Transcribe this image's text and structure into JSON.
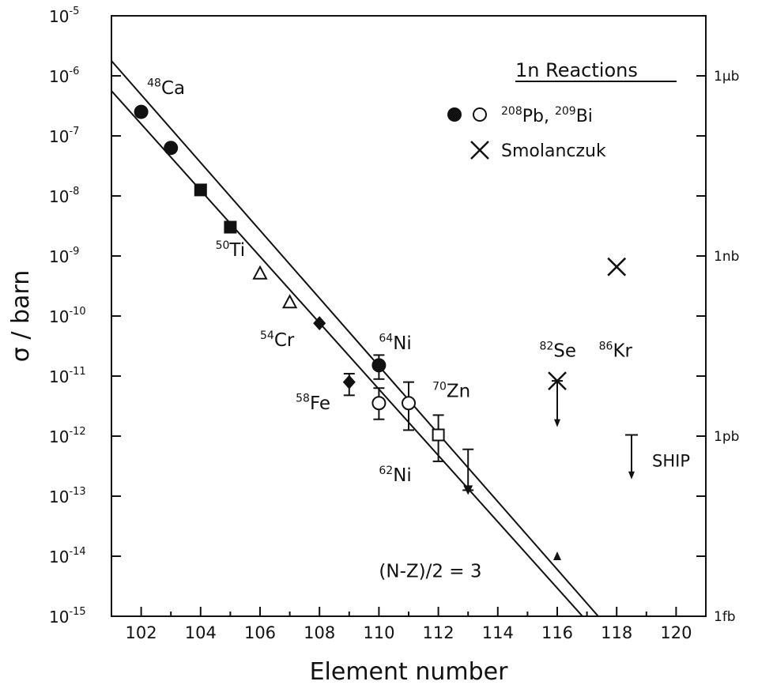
{
  "chart_data": {
    "type": "scatter",
    "xlabel": "Element number",
    "ylabel": "σ / barn",
    "xlim": [
      101,
      121
    ],
    "ylim_log10": [
      -15,
      -5
    ],
    "log_y": true,
    "grid": false,
    "xticks": [
      "102",
      "104",
      "106",
      "108",
      "110",
      "112",
      "114",
      "116",
      "118",
      "120"
    ],
    "yticks": [
      {
        "value": -5,
        "base": "10",
        "exp": "-5"
      },
      {
        "value": -6,
        "base": "10",
        "exp": "-6"
      },
      {
        "value": -7,
        "base": "10",
        "exp": "-7"
      },
      {
        "value": -8,
        "base": "10",
        "exp": "-8"
      },
      {
        "value": -9,
        "base": "10",
        "exp": "-9"
      },
      {
        "value": -10,
        "base": "10",
        "exp": "-10"
      },
      {
        "value": -11,
        "base": "10",
        "exp": "-11"
      },
      {
        "value": -12,
        "base": "10",
        "exp": "-12"
      },
      {
        "value": -13,
        "base": "10",
        "exp": "-13"
      },
      {
        "value": -14,
        "base": "10",
        "exp": "-14"
      },
      {
        "value": -15,
        "base": "10",
        "exp": "-15"
      }
    ],
    "right_axis_labels": [
      {
        "value": -6,
        "text": "1μb"
      },
      {
        "value": -9,
        "text": "1nb"
      },
      {
        "value": -12,
        "text": "1pb"
      },
      {
        "value": -15,
        "text": "1fb"
      }
    ],
    "legend": {
      "title": "1n Reactions",
      "position": "top-right",
      "entries": [
        {
          "markers": [
            "filled-circle",
            "open-circle"
          ],
          "label_parts": [
            {
              "sup": "208",
              "text": "Pb, "
            },
            {
              "sup": "209",
              "text": "Bi"
            }
          ]
        },
        {
          "markers": [
            "x"
          ],
          "label_parts": [
            {
              "sup": "",
              "text": "Smolanczuk"
            }
          ]
        }
      ]
    },
    "lines": [
      {
        "x": [
          101,
          117.38
        ],
        "y_log10": [
          -5.75,
          -15.0
        ]
      },
      {
        "x": [
          101,
          116.85
        ],
        "y_log10": [
          -6.25,
          -15.0
        ]
      }
    ],
    "points": [
      {
        "x": 102,
        "y_log10": -6.6,
        "marker": "filled-circle"
      },
      {
        "x": 103,
        "y_log10": -7.2,
        "marker": "filled-circle"
      },
      {
        "x": 104,
        "y_log10": -7.9,
        "marker": "filled-square"
      },
      {
        "x": 105,
        "y_log10": -8.52,
        "marker": "filled-square"
      },
      {
        "x": 106,
        "y_log10": -9.3,
        "marker": "open-triangle"
      },
      {
        "x": 107,
        "y_log10": -9.78,
        "marker": "open-triangle"
      },
      {
        "x": 108,
        "y_log10": -10.12,
        "marker": "filled-diamond"
      },
      {
        "x": 109,
        "y_log10": -11.1,
        "marker": "filled-diamond",
        "err_low": -11.32,
        "err_high": -10.96
      },
      {
        "x": 110,
        "y_log10": -10.82,
        "marker": "filled-circle",
        "err_low": -11.05,
        "err_high": -10.65
      },
      {
        "x": 110,
        "y_log10": -11.45,
        "marker": "open-circle",
        "err_low": -11.72,
        "err_high": -11.2
      },
      {
        "x": 111,
        "y_log10": -11.45,
        "marker": "open-circle",
        "err_low": -11.9,
        "err_high": -11.1
      },
      {
        "x": 112,
        "y_log10": -11.98,
        "marker": "open-square",
        "err_low": -12.42,
        "err_high": -11.65
      },
      {
        "x": 113,
        "y_log10": -12.9,
        "marker": "filled-down-triangle",
        "err_low": -12.9,
        "err_high": -12.22
      },
      {
        "x": 116,
        "y_log10": -11.08,
        "marker": "x",
        "err_low": -11.5,
        "err_high": -11.08,
        "upper_limit": true,
        "arrow_to": -11.85
      },
      {
        "x": 118,
        "y_log10": -9.18,
        "marker": "x"
      },
      {
        "x": 116,
        "y_log10": -14.0,
        "marker": "filled-small"
      }
    ],
    "ship_limit": {
      "x": 118.5,
      "y_top": -11.98,
      "arrow_to": -12.72,
      "label": "SHIP"
    },
    "annotations": [
      {
        "x": 102.2,
        "y_log10": -6.3,
        "sup": "48",
        "text": "Ca"
      },
      {
        "x": 104.5,
        "y_log10": -9.0,
        "sup": "50",
        "text": "Ti"
      },
      {
        "x": 106.0,
        "y_log10": -10.5,
        "sup": "54",
        "text": "Cr"
      },
      {
        "x": 107.2,
        "y_log10": -11.55,
        "sup": "58",
        "text": "Fe"
      },
      {
        "x": 110.0,
        "y_log10": -10.55,
        "sup": "64",
        "text": "Ni"
      },
      {
        "x": 110.0,
        "y_log10": -12.75,
        "sup": "62",
        "text": "Ni"
      },
      {
        "x": 111.8,
        "y_log10": -11.35,
        "sup": "70",
        "text": "Zn"
      },
      {
        "x": 115.4,
        "y_log10": -10.68,
        "sup": "82",
        "text": "Se"
      },
      {
        "x": 117.4,
        "y_log10": -10.68,
        "sup": "86",
        "text": "Kr"
      },
      {
        "x": 110.0,
        "y_log10": -14.35,
        "sup": "",
        "text": "(N-Z)/2  =  3"
      }
    ]
  }
}
